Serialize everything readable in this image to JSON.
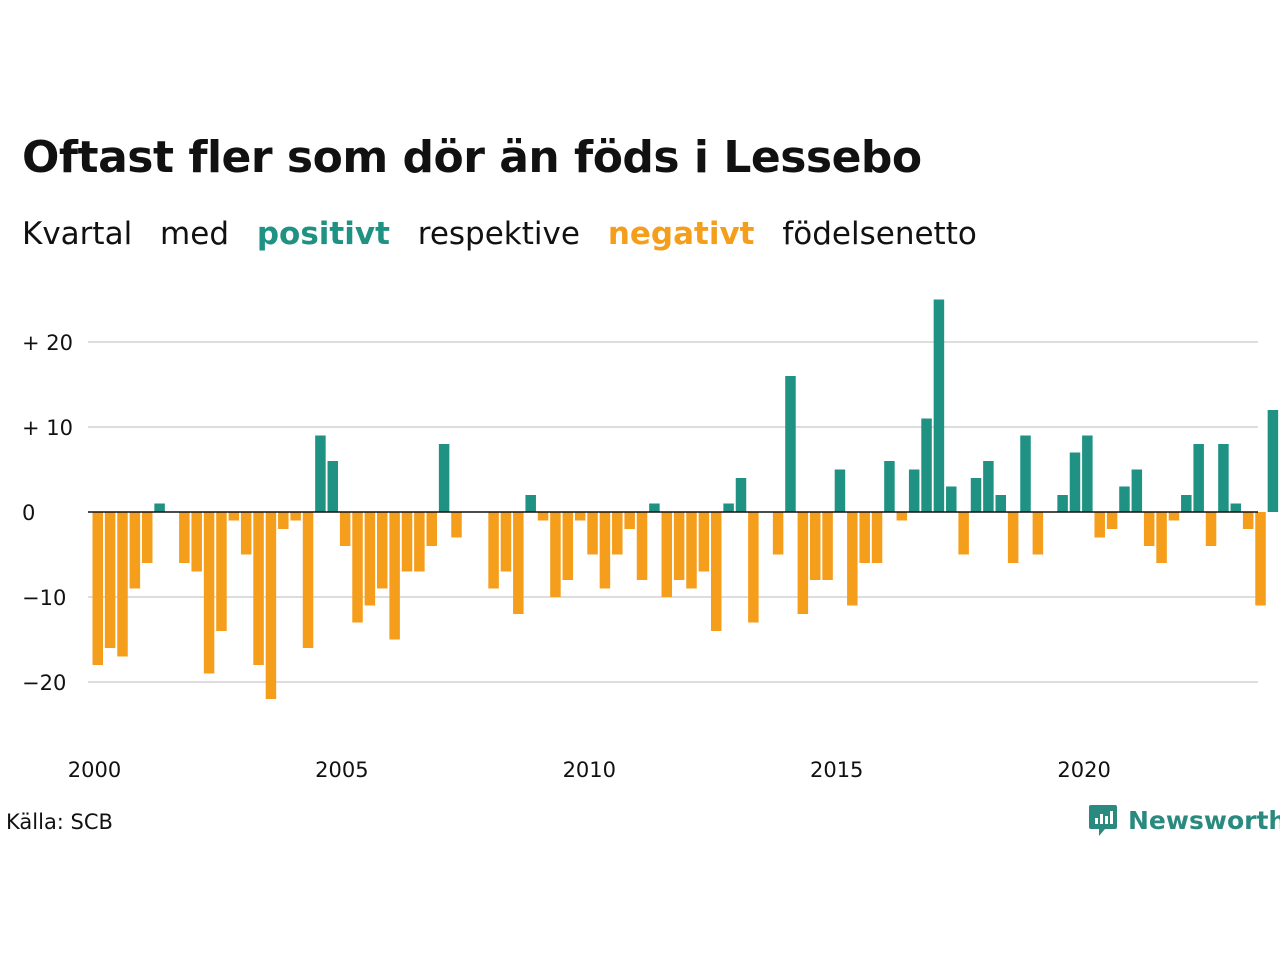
{
  "title": "Oftast fler som dör än föds i Lessebo",
  "subtitle": {
    "part1": "Kvartal",
    "part2": "med",
    "positive_word": "positivt",
    "part3": "respektive",
    "negative_word": "negativt",
    "part4": "födelsenetto"
  },
  "colors": {
    "positive": "#1f9283",
    "negative": "#f59e1c",
    "grid": "#dddddd",
    "zero_line": "#111111"
  },
  "source": "Källa: SCB",
  "brand": {
    "name": "Newsworthy",
    "icon": "newsworthy-logo-icon"
  },
  "chart_data": {
    "type": "bar",
    "ylim": [
      -26,
      27
    ],
    "yticks": [
      {
        "value": 20,
        "label": "+ 20"
      },
      {
        "value": 10,
        "label": "+ 10"
      },
      {
        "value": 0,
        "label": "0"
      },
      {
        "value": -10,
        "label": "−10"
      },
      {
        "value": -20,
        "label": "−20"
      }
    ],
    "xticks": [
      "2000",
      "2005",
      "2010",
      "2015",
      "2020"
    ],
    "categories": [
      "2000 K1",
      "2000 K2",
      "2000 K3",
      "2000 K4",
      "2001 K1",
      "2001 K2",
      "2001 K3",
      "2001 K4",
      "2002 K1",
      "2002 K2",
      "2002 K3",
      "2002 K4",
      "2003 K1",
      "2003 K2",
      "2003 K3",
      "2003 K4",
      "2004 K1",
      "2004 K2",
      "2004 K3",
      "2004 K4",
      "2005 K1",
      "2005 K2",
      "2005 K3",
      "2005 K4",
      "2006 K1",
      "2006 K2",
      "2006 K3",
      "2006 K4",
      "2007 K1",
      "2007 K2",
      "2007 K3",
      "2007 K4",
      "2008 K1",
      "2008 K2",
      "2008 K3",
      "2008 K4",
      "2009 K1",
      "2009 K2",
      "2009 K3",
      "2009 K4",
      "2010 K1",
      "2010 K2",
      "2010 K3",
      "2010 K4",
      "2011 K1",
      "2011 K2",
      "2011 K3",
      "2011 K4",
      "2012 K1",
      "2012 K2",
      "2012 K3",
      "2012 K4",
      "2013 K1",
      "2013 K2",
      "2013 K3",
      "2013 K4",
      "2014 K1",
      "2014 K2",
      "2014 K3",
      "2014 K4",
      "2015 K1",
      "2015 K2",
      "2015 K3",
      "2015 K4",
      "2016 K1",
      "2016 K2",
      "2016 K3",
      "2016 K4",
      "2017 K1",
      "2017 K2",
      "2017 K3",
      "2017 K4",
      "2018 K1",
      "2018 K2",
      "2018 K3",
      "2018 K4",
      "2019 K1",
      "2019 K2",
      "2019 K3",
      "2019 K4",
      "2020 K1",
      "2020 K2",
      "2020 K3",
      "2020 K4",
      "2021 K1",
      "2021 K2",
      "2021 K3",
      "2021 K4",
      "2022 K1",
      "2022 K2",
      "2022 K3",
      "2022 K4",
      "2023 K1",
      "2023 K2",
      "2023 K3",
      "2023 K4"
    ],
    "values": [
      -18,
      -16,
      -17,
      -9,
      -6,
      1,
      0,
      -6,
      -7,
      -19,
      -14,
      -1,
      -5,
      -18,
      -22,
      -2,
      -1,
      -16,
      9,
      6,
      -4,
      -13,
      -11,
      -9,
      -15,
      -7,
      -7,
      -4,
      8,
      -3,
      0,
      0,
      -9,
      -7,
      -12,
      2,
      -1,
      -10,
      -8,
      -1,
      -5,
      -9,
      -5,
      -2,
      -8,
      1,
      -10,
      -8,
      -9,
      -7,
      -14,
      1,
      4,
      -13,
      0,
      -5,
      16,
      -12,
      -8,
      -8,
      5,
      -11,
      -6,
      -6,
      6,
      -1,
      5,
      11,
      25,
      3,
      -5,
      4,
      6,
      2,
      -6,
      9,
      -5,
      0,
      2,
      7,
      9,
      -3,
      -2,
      3,
      5,
      -4,
      -6,
      -1,
      2,
      8,
      -4,
      8,
      1,
      -2,
      -11,
      12
    ]
  }
}
